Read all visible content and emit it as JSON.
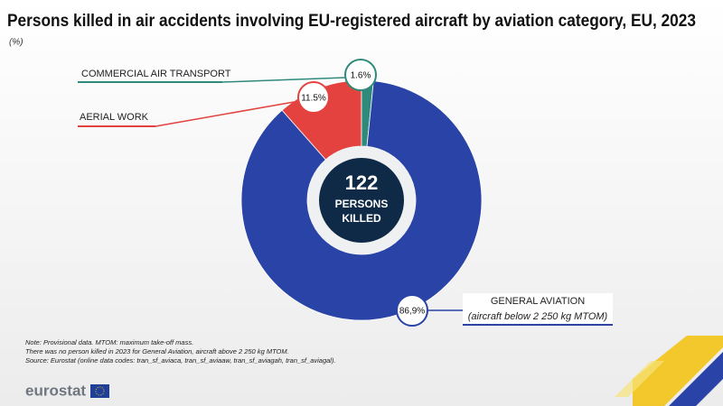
{
  "chart_data": {
    "type": "donut",
    "title": "Persons killed in air accidents involving EU-registered aircraft by aviation category, EU, 2023",
    "subtitle": "(%)",
    "categories": [
      "AERIAL WORK",
      "COMMERCIAL AIR TRANSPORT",
      "GENERAL AVIATION"
    ],
    "general_aviation_note": "(aircraft below 2 250 kg MTOM)",
    "values": [
      11.5,
      1.6,
      86.9
    ],
    "value_labels": [
      "11.5%",
      "1.6%",
      "86,9%"
    ],
    "colors": [
      "#e3423f",
      "#2f8a7b",
      "#2a43a6"
    ],
    "total": 122,
    "total_label_lines": [
      "PERSONS",
      "KILLED"
    ],
    "notes": [
      "Note: Provisional data. MTOM: maximum take-off mass.",
      "There was no person killed in 2023 for General Aviation, aircraft above 2 250 kg MTOM.",
      "Source: Eurostat (online data codes: tran_sf_aviaca, tran_sf_aviaaw, tran_sf_aviagah, tran_sf_aviagal)."
    ],
    "logo": "eurostat"
  }
}
